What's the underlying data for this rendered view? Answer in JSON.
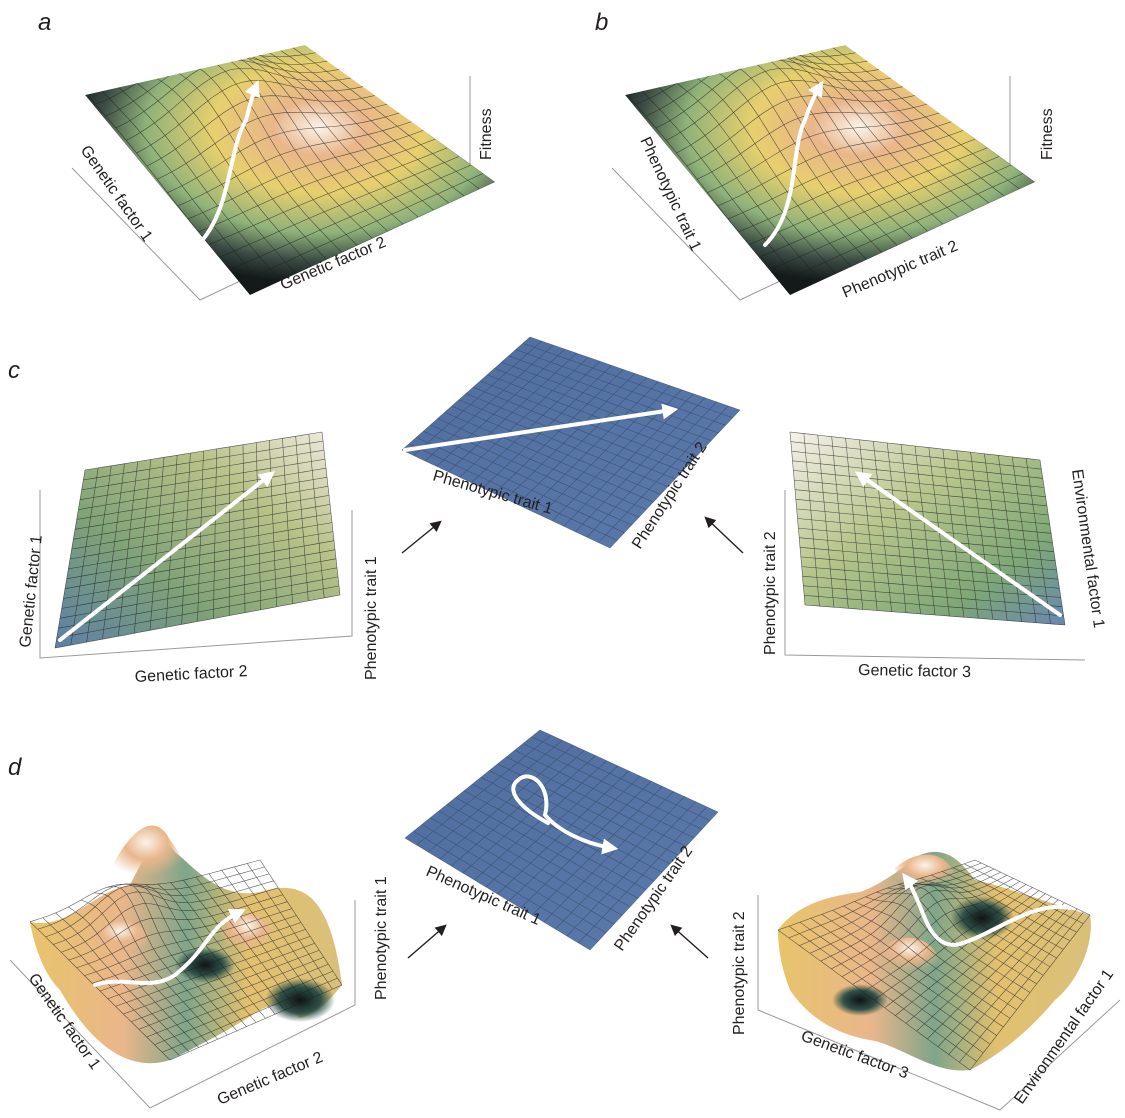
{
  "panels": {
    "a": {
      "letter": "a",
      "labels": {
        "left_axis": "Genetic factor 1",
        "bottom_axis": "Genetic factor 2",
        "vertical_axis": "Fitness"
      }
    },
    "b": {
      "letter": "b",
      "labels": {
        "left_axis": "Phenotypic trait 1",
        "bottom_axis": "Phenotypic trait 2",
        "vertical_axis": "Fitness"
      }
    },
    "c": {
      "letter": "c",
      "left_surface": {
        "left_axis": "Genetic factor 1",
        "bottom_axis": "Genetic factor 2",
        "vertical_axis": "Phenotypic trait 1"
      },
      "center_plane": {
        "axis_1": "Phenotypic trait 1",
        "axis_2": "Phenotypic trait 2"
      },
      "right_surface": {
        "left_axis": "Phenotypic trait 2",
        "bottom_axis": "Genetic factor 3",
        "right_axis": "Environmental factor 1"
      }
    },
    "d": {
      "letter": "d",
      "left_surface": {
        "left_axis": "Genetic factor 1",
        "bottom_axis": "Genetic factor 2",
        "vertical_axis": "Phenotypic trait 1"
      },
      "center_plane": {
        "axis_1": "Phenotypic trait 1",
        "axis_2": "Phenotypic trait 2"
      },
      "right_surface": {
        "left_axis": "Phenotypic trait 2",
        "bottom_axis": "Genetic factor 3",
        "right_axis": "Environmental factor 1"
      }
    }
  },
  "colors": {
    "background": "#ffffff",
    "surface_dark": "#141a1a",
    "surface_green": "#8fb27a",
    "surface_yellow": "#e7cf6e",
    "surface_peach": "#e9b68b",
    "surface_peak": "#fbf3ea",
    "plane_blue": "#5574a8",
    "path": "#ffffff",
    "text": "#231f20",
    "axis": "#9a9a9a"
  }
}
